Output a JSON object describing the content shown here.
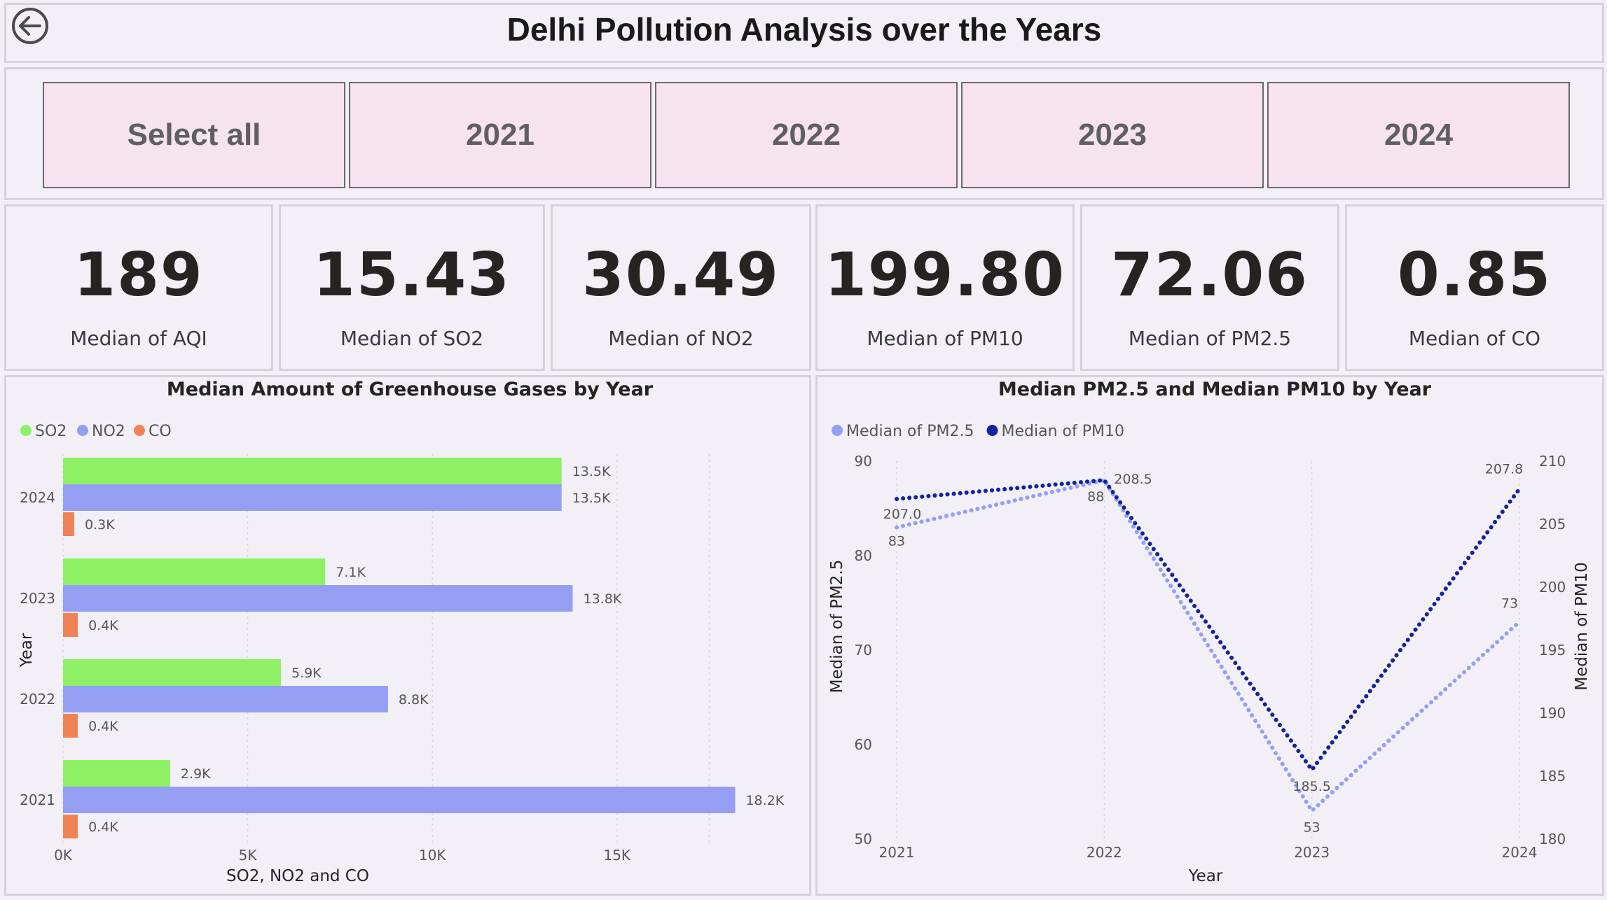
{
  "header": {
    "title": "Delhi Pollution Analysis over the Years",
    "back_icon": "arrow-left-circle-icon"
  },
  "slicer": {
    "options": [
      "Select all",
      "2021",
      "2022",
      "2023",
      "2024"
    ]
  },
  "kpis": [
    {
      "value": "189",
      "label": "Median of AQI"
    },
    {
      "value": "15.43",
      "label": "Median of SO2"
    },
    {
      "value": "30.49",
      "label": "Median of NO2"
    },
    {
      "value": "199.80",
      "label": "Median of PM10"
    },
    {
      "value": "72.06",
      "label": "Median of PM2.5"
    },
    {
      "value": "0.85",
      "label": "Median of CO"
    }
  ],
  "colors": {
    "so2": "#8ef165",
    "no2": "#949ff3",
    "co": "#f08356",
    "pm25": "#949ff3",
    "pm10": "#12239e"
  },
  "chart_data": [
    {
      "type": "bar",
      "orientation": "horizontal",
      "title": "Median Amount of Greenhouse Gases by Year",
      "xlabel": "SO2, NO2 and CO",
      "ylabel": "Year",
      "legend_position": "top-left",
      "categories": [
        "2024",
        "2023",
        "2022",
        "2021"
      ],
      "series": [
        {
          "name": "SO2",
          "values": [
            13500,
            7100,
            5900,
            2900
          ],
          "labels": [
            "13.5K",
            "7.1K",
            "5.9K",
            "2.9K"
          ]
        },
        {
          "name": "NO2",
          "values": [
            13500,
            13800,
            8800,
            18200
          ],
          "labels": [
            "13.5K",
            "13.8K",
            "8.8K",
            "18.2K"
          ]
        },
        {
          "name": "CO",
          "values": [
            300,
            400,
            400,
            400
          ],
          "labels": [
            "0.3K",
            "0.4K",
            "0.4K",
            "0.4K"
          ]
        }
      ],
      "xticks": [
        "0K",
        "5K",
        "10K",
        "15K"
      ],
      "xtick_values": [
        0,
        5000,
        10000,
        15000
      ],
      "xlim": [
        0,
        19500
      ],
      "grid": true
    },
    {
      "type": "line",
      "title": "Median PM2.5 and Median PM10 by Year",
      "xlabel": "Year",
      "ylabel": "Median of PM2.5",
      "y2label": "Median of PM10",
      "legend_position": "top-left",
      "x": [
        "2021",
        "2022",
        "2023",
        "2024"
      ],
      "series": [
        {
          "name": "Median of PM2.5",
          "axis": "left",
          "values": [
            83,
            88,
            53,
            73
          ],
          "labels": [
            "83",
            "88",
            "53",
            "73"
          ]
        },
        {
          "name": "Median of PM10",
          "axis": "right",
          "values": [
            207.0,
            208.5,
            185.5,
            207.8
          ],
          "labels": [
            "207.0",
            "208.5",
            "185.5",
            "207.8"
          ]
        }
      ],
      "ylim": [
        50,
        90
      ],
      "yticks": [
        "50",
        "60",
        "70",
        "80",
        "90"
      ],
      "ytick_values": [
        50,
        60,
        70,
        80,
        90
      ],
      "y2lim": [
        180,
        210
      ],
      "y2ticks": [
        "180",
        "185",
        "190",
        "195",
        "200",
        "205",
        "210"
      ],
      "y2tick_values": [
        180,
        185,
        190,
        195,
        200,
        205,
        210
      ],
      "grid": true
    }
  ]
}
